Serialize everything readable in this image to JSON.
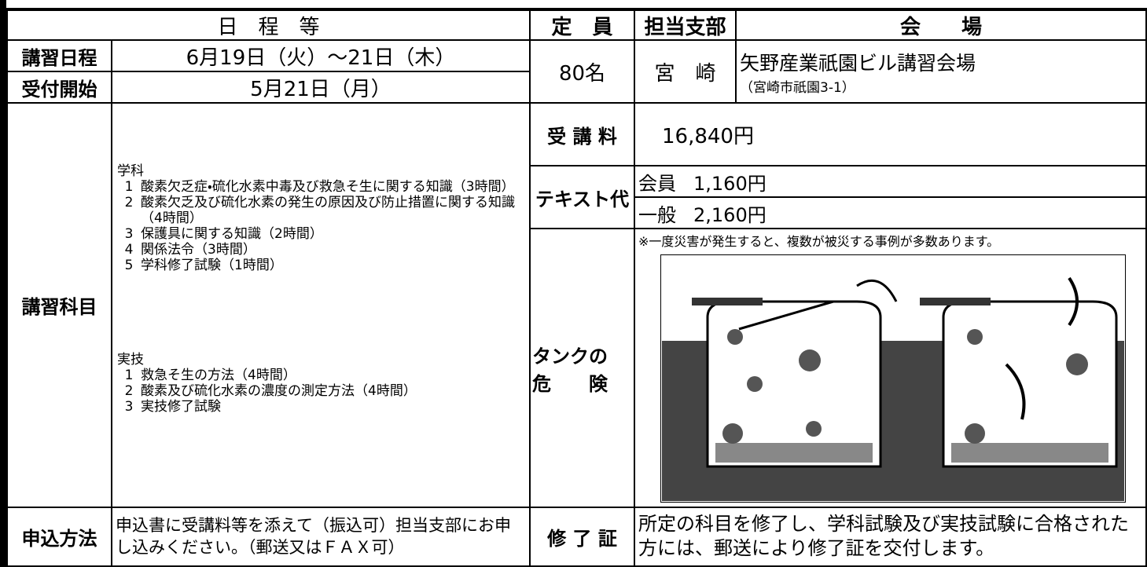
{
  "header": {
    "schedule": "日　程　等",
    "capacity": "定　員",
    "branch": "担当支部",
    "venue": "会　　場"
  },
  "dates": {
    "course_label": "講習日程",
    "course": "6月19日（火）～21日（木）",
    "reception_label": "受付開始",
    "reception": "5月21日（月）"
  },
  "capacity": "80名",
  "branch": "宮　崎",
  "venue": {
    "name": "矢野産業祇園ビル講習会場",
    "address": "（宮崎市祇園3-1）"
  },
  "subjects": {
    "label": "講習科目",
    "theory_title": "学科",
    "theory": [
      {
        "no": "1",
        "text": "酸素欠乏症・硫化水素中毒及び救急そ生に関する知識（3時間）"
      },
      {
        "no": "2",
        "text": "酸素欠乏及び硫化水素の発生の原因及び防止措置に関する知識（4時間）"
      },
      {
        "no": "3",
        "text": "保護具に関する知識（2時間）"
      },
      {
        "no": "4",
        "text": "関係法令（3時間）"
      },
      {
        "no": "5",
        "text": "学科修了試験（1時間）"
      }
    ],
    "practice_title": "実技",
    "practice": [
      {
        "no": "1",
        "text": "救急そ生の方法（4時間）"
      },
      {
        "no": "2",
        "text": "酸素及び硫化水素の濃度の測定方法（4時間）"
      },
      {
        "no": "3",
        "text": "実技修了試験"
      }
    ]
  },
  "fee": {
    "label": "受 講 料",
    "amount": "16,840円"
  },
  "text_fee": {
    "label": "テキスト代",
    "member_label": "会員",
    "member": "1,160円",
    "general_label": "一般",
    "general": "2,160円"
  },
  "danger": {
    "label_lines": [
      "タンクの",
      "危　　険"
    ],
    "note": "※一度災害が発生すると、複数が被災する事例が多数あります。"
  },
  "application": {
    "label": "申込方法",
    "text": "申込書に受講料等を添えて（振込可）担当支部にお申し込みください。（郵送又はＦＡＸ可）"
  },
  "certificate": {
    "label": "修 了 証",
    "text": "所定の科目を修了し、学科試験及び実技試験に合格された方には、郵送により修了証を交付します。"
  }
}
